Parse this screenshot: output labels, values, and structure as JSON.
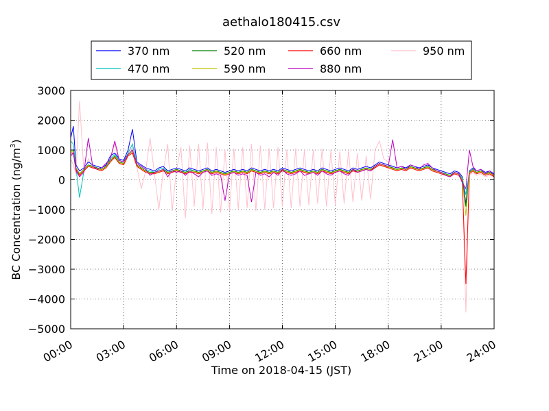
{
  "chart_data": {
    "type": "line",
    "title": "aethalo180415.csv",
    "xlabel": "Time on 2018-04-15 (JST)",
    "ylabel_main": "BC Concentration (ng/m",
    "ylabel_sup": "3",
    "ylabel_close": ")",
    "xlim_hours": [
      0,
      24
    ],
    "ylim": [
      -5000,
      3000
    ],
    "x_ticks": [
      "00:00",
      "03:00",
      "06:00",
      "09:00",
      "12:00",
      "15:00",
      "18:00",
      "21:00",
      "24:00"
    ],
    "y_ticks": [
      "3000",
      "2000",
      "1000",
      "0",
      "−1000",
      "−2000",
      "−3000",
      "−4000",
      "−5000"
    ],
    "grid": true,
    "legend_position": "top-center",
    "legend_columns": 4,
    "series": [
      {
        "name": "370 nm",
        "color": "#0000ff"
      },
      {
        "name": "470 nm",
        "color": "#00bfbf"
      },
      {
        "name": "520 nm",
        "color": "#008000"
      },
      {
        "name": "590 nm",
        "color": "#bfbf00"
      },
      {
        "name": "660 nm",
        "color": "#ff0000"
      },
      {
        "name": "880 nm",
        "color": "#bf00bf"
      },
      {
        "name": "950 nm",
        "color": "#ffc0cb"
      }
    ],
    "x_hours": [
      0,
      0.15,
      0.3,
      0.5,
      0.75,
      1.0,
      1.25,
      1.5,
      1.75,
      2.0,
      2.25,
      2.5,
      2.75,
      3.0,
      3.25,
      3.5,
      3.75,
      4.0,
      4.25,
      4.5,
      4.75,
      5.0,
      5.25,
      5.5,
      5.75,
      6.0,
      6.25,
      6.5,
      6.75,
      7.0,
      7.25,
      7.5,
      7.75,
      8.0,
      8.25,
      8.5,
      8.75,
      9.0,
      9.25,
      9.5,
      9.75,
      10.0,
      10.25,
      10.5,
      10.75,
      11.0,
      11.25,
      11.5,
      11.75,
      12.0,
      12.25,
      12.5,
      12.75,
      13.0,
      13.25,
      13.5,
      13.75,
      14.0,
      14.25,
      14.5,
      14.75,
      15.0,
      15.25,
      15.5,
      15.75,
      16.0,
      16.25,
      16.5,
      16.75,
      17.0,
      17.25,
      17.5,
      17.75,
      18.0,
      18.25,
      18.5,
      18.75,
      19.0,
      19.25,
      19.5,
      19.75,
      20.0,
      20.25,
      20.5,
      20.75,
      21.0,
      21.25,
      21.5,
      21.75,
      22.0,
      22.2,
      22.4,
      22.6,
      22.8,
      23.0,
      23.25,
      23.5,
      23.75,
      24.0
    ],
    "series_values": [
      [
        1400,
        1800,
        500,
        300,
        400,
        600,
        500,
        450,
        400,
        500,
        800,
        900,
        700,
        650,
        1000,
        1700,
        600,
        500,
        400,
        350,
        300,
        400,
        450,
        300,
        350,
        400,
        350,
        300,
        400,
        350,
        300,
        350,
        400,
        300,
        350,
        300,
        250,
        300,
        350,
        300,
        350,
        300,
        400,
        350,
        300,
        350,
        300,
        350,
        300,
        400,
        350,
        300,
        350,
        400,
        350,
        300,
        350,
        300,
        400,
        350,
        300,
        350,
        400,
        350,
        300,
        400,
        350,
        400,
        450,
        400,
        500,
        600,
        550,
        500,
        450,
        400,
        450,
        400,
        500,
        450,
        400,
        450,
        500,
        400,
        350,
        300,
        250,
        200,
        300,
        250,
        100,
        -800,
        300,
        400,
        300,
        350,
        250,
        300,
        200
      ],
      [
        1300,
        1200,
        400,
        -600,
        300,
        500,
        450,
        400,
        350,
        450,
        700,
        850,
        650,
        600,
        900,
        1200,
        550,
        450,
        350,
        300,
        250,
        350,
        400,
        250,
        300,
        350,
        300,
        250,
        350,
        300,
        250,
        300,
        350,
        250,
        300,
        250,
        200,
        250,
        300,
        250,
        300,
        250,
        350,
        300,
        250,
        300,
        250,
        300,
        250,
        350,
        300,
        250,
        300,
        350,
        300,
        250,
        300,
        250,
        350,
        300,
        250,
        300,
        350,
        300,
        250,
        350,
        300,
        350,
        400,
        350,
        450,
        550,
        500,
        450,
        400,
        350,
        400,
        350,
        450,
        400,
        350,
        400,
        450,
        350,
        300,
        250,
        200,
        150,
        250,
        200,
        50,
        -500,
        250,
        350,
        250,
        300,
        200,
        250,
        150
      ],
      [
        1000,
        1000,
        400,
        200,
        350,
        500,
        450,
        400,
        350,
        450,
        650,
        800,
        600,
        550,
        850,
        1000,
        500,
        400,
        300,
        250,
        250,
        300,
        350,
        250,
        300,
        350,
        300,
        250,
        300,
        300,
        250,
        300,
        350,
        250,
        300,
        250,
        200,
        250,
        300,
        250,
        300,
        250,
        350,
        300,
        250,
        300,
        250,
        300,
        250,
        350,
        300,
        250,
        300,
        350,
        300,
        250,
        300,
        250,
        350,
        300,
        250,
        300,
        350,
        300,
        250,
        350,
        300,
        350,
        400,
        350,
        450,
        550,
        500,
        450,
        400,
        350,
        400,
        350,
        450,
        400,
        350,
        400,
        450,
        350,
        300,
        250,
        200,
        150,
        250,
        200,
        0,
        -900,
        250,
        350,
        250,
        300,
        200,
        250,
        150
      ],
      [
        950,
        950,
        380,
        180,
        330,
        480,
        430,
        380,
        330,
        430,
        630,
        780,
        580,
        530,
        830,
        950,
        480,
        380,
        280,
        230,
        230,
        280,
        330,
        230,
        280,
        330,
        280,
        230,
        280,
        280,
        230,
        280,
        330,
        230,
        280,
        230,
        180,
        230,
        280,
        230,
        280,
        230,
        330,
        280,
        230,
        280,
        230,
        280,
        230,
        330,
        280,
        230,
        280,
        330,
        280,
        230,
        280,
        230,
        330,
        280,
        230,
        280,
        330,
        280,
        230,
        330,
        280,
        330,
        380,
        330,
        430,
        530,
        480,
        430,
        380,
        330,
        380,
        330,
        430,
        380,
        330,
        380,
        430,
        330,
        280,
        230,
        180,
        130,
        230,
        180,
        -20,
        -1200,
        230,
        330,
        230,
        280,
        180,
        230,
        130
      ],
      [
        900,
        900,
        350,
        150,
        300,
        450,
        400,
        350,
        300,
        400,
        600,
        750,
        550,
        500,
        800,
        900,
        450,
        350,
        250,
        200,
        200,
        250,
        300,
        200,
        250,
        300,
        250,
        200,
        250,
        250,
        200,
        250,
        300,
        200,
        250,
        200,
        150,
        200,
        250,
        200,
        250,
        200,
        300,
        250,
        200,
        250,
        200,
        250,
        200,
        300,
        250,
        200,
        250,
        300,
        250,
        200,
        250,
        200,
        300,
        250,
        200,
        250,
        300,
        250,
        200,
        300,
        250,
        300,
        350,
        300,
        400,
        500,
        450,
        400,
        350,
        300,
        350,
        300,
        400,
        350,
        300,
        350,
        400,
        300,
        250,
        200,
        150,
        100,
        200,
        150,
        -50,
        -3500,
        200,
        300,
        200,
        250,
        150,
        200,
        100
      ],
      [
        800,
        900,
        300,
        100,
        250,
        1400,
        450,
        350,
        400,
        550,
        700,
        1300,
        650,
        600,
        850,
        1000,
        550,
        450,
        350,
        150,
        250,
        300,
        350,
        100,
        300,
        250,
        300,
        150,
        300,
        200,
        100,
        250,
        300,
        150,
        200,
        150,
        -700,
        200,
        250,
        150,
        200,
        150,
        -750,
        250,
        150,
        200,
        100,
        250,
        150,
        350,
        200,
        150,
        200,
        300,
        150,
        200,
        250,
        150,
        300,
        200,
        150,
        250,
        300,
        200,
        150,
        350,
        250,
        300,
        350,
        300,
        450,
        550,
        500,
        450,
        1350,
        400,
        450,
        350,
        500,
        450,
        350,
        500,
        550,
        400,
        300,
        250,
        150,
        100,
        250,
        200,
        -100,
        -300,
        1000,
        450,
        300,
        350,
        200,
        300,
        150
      ],
      [
        700,
        500,
        200,
        2650,
        250,
        700,
        400,
        350,
        300,
        500,
        700,
        1200,
        600,
        550,
        900,
        1100,
        450,
        -300,
        300,
        1400,
        200,
        -1000,
        300,
        1200,
        -1050,
        350,
        1100,
        -1300,
        1150,
        -900,
        1200,
        -1000,
        1250,
        -1150,
        1100,
        -1100,
        1000,
        -1050,
        1050,
        -1000,
        1100,
        -950,
        1200,
        -1050,
        1150,
        -1000,
        1050,
        -950,
        1100,
        -900,
        1000,
        -950,
        1050,
        -900,
        1000,
        -850,
        1000,
        -800,
        1050,
        -900,
        1000,
        -850,
        950,
        -800,
        1000,
        -750,
        900,
        -700,
        800,
        -650,
        1000,
        1300,
        700,
        600,
        450,
        300,
        400,
        300,
        400,
        350,
        300,
        350,
        400,
        300,
        250,
        200,
        150,
        100,
        200,
        150,
        -100,
        -4450,
        150,
        250,
        150,
        200,
        100,
        150,
        100
      ]
    ]
  }
}
